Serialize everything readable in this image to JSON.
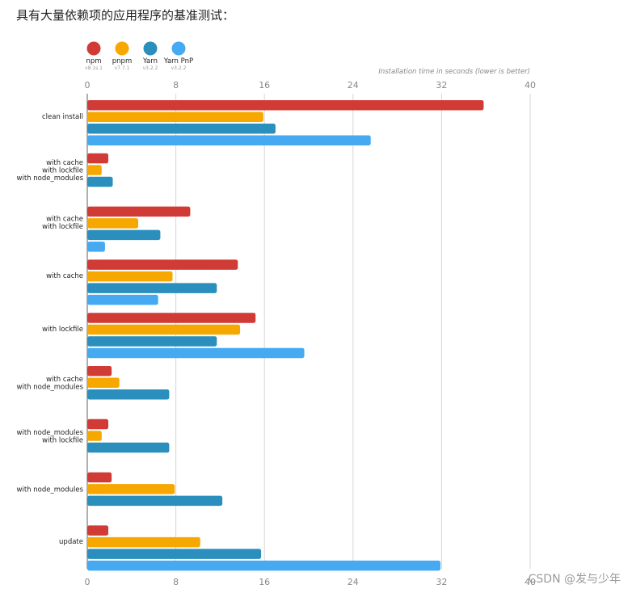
{
  "heading": "具有大量依赖项的应用程序的基准测试：",
  "watermark": "CSDN @发与少年",
  "chart_data": {
    "type": "bar",
    "orientation": "horizontal",
    "axis_title": "Installation time in seconds (lower is better)",
    "xlim": [
      0,
      40
    ],
    "ticks": [
      0,
      8,
      16,
      24,
      32,
      40
    ],
    "grid": true,
    "legend_position": "top-left",
    "categories": [
      [
        "clean install"
      ],
      [
        "with cache",
        "with lockfile",
        "with node_modules"
      ],
      [
        "with cache",
        "with lockfile"
      ],
      [
        "with cache"
      ],
      [
        "with lockfile"
      ],
      [
        "with cache",
        "with node_modules"
      ],
      [
        "with node_modules",
        "with lockfile"
      ],
      [
        "with node_modules"
      ],
      [
        "update"
      ]
    ],
    "series": [
      {
        "name": "npm",
        "version": "v8.1s.1",
        "color": "#d13b35",
        "values": [
          35.8,
          1.9,
          9.3,
          13.6,
          15.2,
          2.2,
          1.9,
          2.2,
          1.9
        ]
      },
      {
        "name": "pnpm",
        "version": "v7.7.1",
        "color": "#f7a800",
        "values": [
          15.9,
          1.3,
          4.6,
          7.7,
          13.8,
          2.9,
          1.3,
          7.9,
          10.2
        ]
      },
      {
        "name": "Yarn",
        "version": "v3.2.2",
        "color": "#2a8fbd",
        "values": [
          17.0,
          2.3,
          6.6,
          11.7,
          11.7,
          7.4,
          7.4,
          12.2,
          15.7
        ]
      },
      {
        "name": "Yarn PnP",
        "version": "v3.2.2",
        "color": "#45aaf2",
        "values": [
          25.6,
          null,
          1.6,
          6.4,
          19.6,
          null,
          null,
          null,
          31.9
        ]
      }
    ]
  }
}
